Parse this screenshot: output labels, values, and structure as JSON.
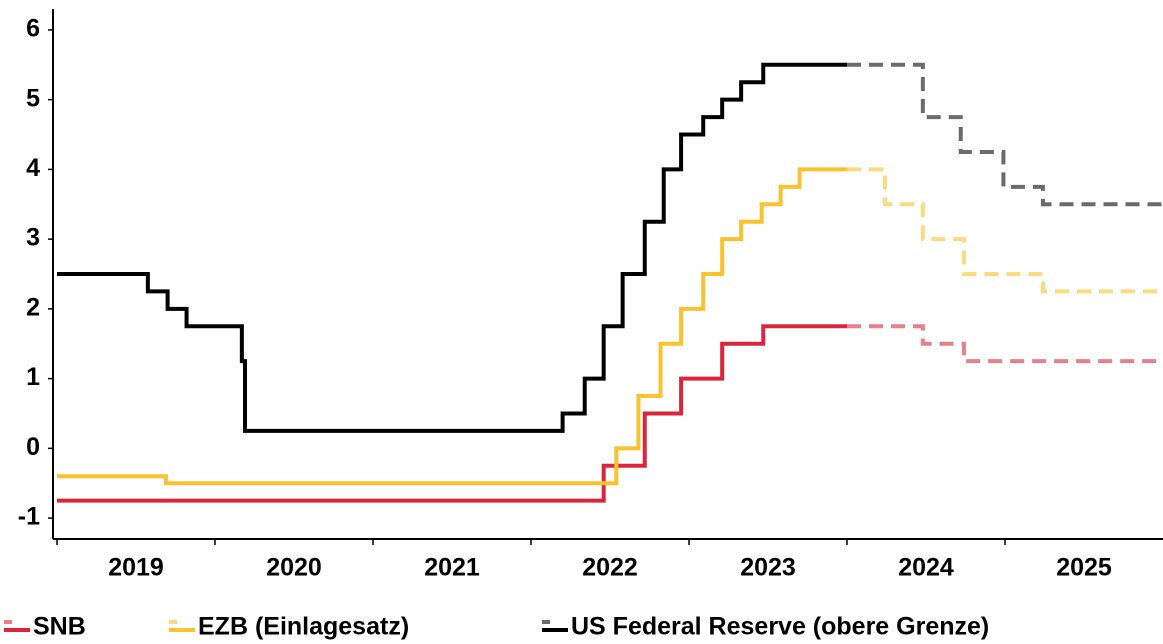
{
  "chart_data": {
    "type": "line",
    "step": true,
    "xlim": [
      2019,
      2026
    ],
    "xticks": [
      2019,
      2020,
      2021,
      2022,
      2023,
      2024,
      2025
    ],
    "ylim": [
      -1.3,
      6.3
    ],
    "yticks": [
      -1,
      0,
      1,
      2,
      3,
      4,
      5,
      6
    ],
    "grid": false,
    "legend": "bottom",
    "series": [
      {
        "name": "SNB",
        "color": "#d9263d",
        "forecast_color": "#e8808c",
        "x": [
          2019,
          2022.46,
          2022.72,
          2022.95,
          2023.21,
          2023.47,
          2024.0
        ],
        "values": [
          -0.75,
          -0.25,
          0.5,
          1.0,
          1.5,
          1.75,
          1.75
        ],
        "forecast_x": [
          2024.0,
          2024.48,
          2024.74,
          2026.0
        ],
        "forecast_values": [
          1.75,
          1.5,
          1.25,
          1.25
        ]
      },
      {
        "name": "EZB (Einlagesatz)",
        "color": "#f9c22e",
        "forecast_color": "#fcdb80",
        "x": [
          2019,
          2019.69,
          2022.54,
          2022.68,
          2022.82,
          2022.95,
          2023.09,
          2023.21,
          2023.33,
          2023.46,
          2023.58,
          2023.7,
          2024.0
        ],
        "values": [
          -0.4,
          -0.5,
          0,
          0.75,
          1.5,
          2.0,
          2.5,
          3.0,
          3.25,
          3.5,
          3.75,
          4.0,
          4.0
        ],
        "forecast_x": [
          2024.0,
          2024.24,
          2024.48,
          2024.74,
          2025.24,
          2026.0
        ],
        "forecast_values": [
          4.0,
          3.5,
          3.0,
          2.5,
          2.25,
          2.25
        ]
      },
      {
        "name": "US Federal Reserve (obere Grenze)",
        "color": "#000000",
        "forecast_color": "#6b6b6b",
        "x": [
          2019,
          2019.575,
          2019.7,
          2019.82,
          2020.17,
          2020.19,
          2022.2,
          2022.34,
          2022.46,
          2022.58,
          2022.72,
          2022.84,
          2022.95,
          2023.09,
          2023.21,
          2023.33,
          2023.47,
          2024.0
        ],
        "values": [
          2.5,
          2.25,
          2.0,
          1.75,
          1.25,
          0.25,
          0.5,
          1.0,
          1.75,
          2.5,
          3.25,
          4.0,
          4.5,
          4.75,
          5.0,
          5.25,
          5.5,
          5.5
        ],
        "forecast_x": [
          2024.0,
          2024.48,
          2024.72,
          2024.99,
          2025.24,
          2026.0
        ],
        "forecast_values": [
          5.5,
          4.75,
          4.25,
          3.75,
          3.5,
          3.5
        ]
      }
    ]
  }
}
